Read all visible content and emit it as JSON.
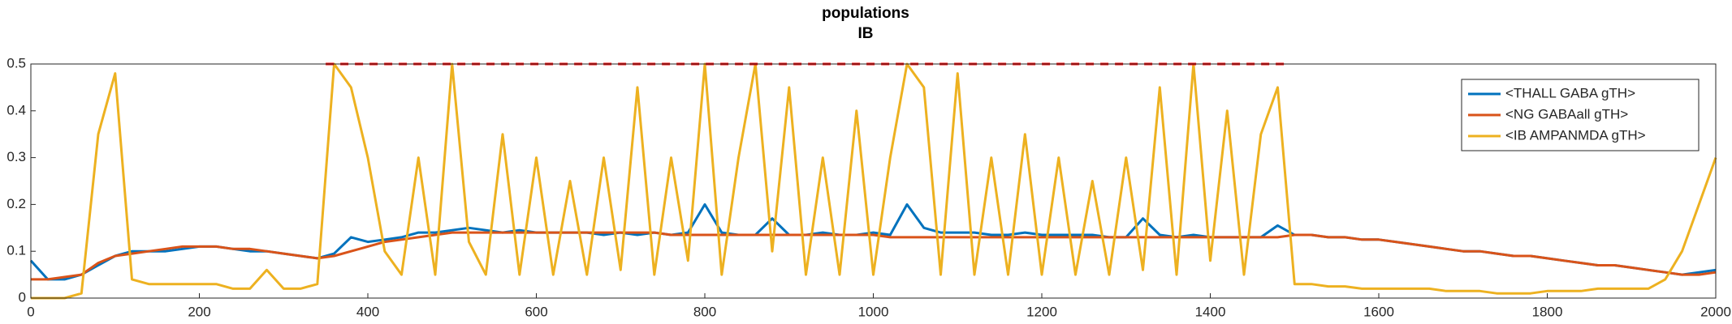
{
  "chart_data": {
    "type": "line",
    "title": "populations",
    "subtitle": "IB",
    "x": [
      0,
      20,
      40,
      60,
      80,
      100,
      120,
      140,
      160,
      180,
      200,
      220,
      240,
      260,
      280,
      300,
      320,
      340,
      360,
      380,
      400,
      420,
      440,
      460,
      480,
      500,
      520,
      540,
      560,
      580,
      600,
      620,
      640,
      660,
      680,
      700,
      720,
      740,
      760,
      780,
      800,
      820,
      840,
      860,
      880,
      900,
      920,
      940,
      960,
      980,
      1000,
      1020,
      1040,
      1060,
      1080,
      1100,
      1120,
      1140,
      1160,
      1180,
      1200,
      1220,
      1240,
      1260,
      1280,
      1300,
      1320,
      1340,
      1360,
      1380,
      1400,
      1420,
      1440,
      1460,
      1480,
      1500,
      1520,
      1540,
      1560,
      1580,
      1600,
      1620,
      1640,
      1660,
      1680,
      1700,
      1720,
      1740,
      1760,
      1780,
      1800,
      1820,
      1840,
      1860,
      1880,
      1900,
      1920,
      1940,
      1960,
      1980,
      2000
    ],
    "series": [
      {
        "name": "<THALL GABA gTH>",
        "color": "#0072bd",
        "values": [
          0.08,
          0.04,
          0.04,
          0.05,
          0.07,
          0.09,
          0.1,
          0.1,
          0.1,
          0.105,
          0.11,
          0.11,
          0.105,
          0.1,
          0.1,
          0.095,
          0.09,
          0.085,
          0.095,
          0.13,
          0.12,
          0.125,
          0.13,
          0.14,
          0.14,
          0.145,
          0.15,
          0.145,
          0.14,
          0.145,
          0.14,
          0.14,
          0.14,
          0.14,
          0.135,
          0.14,
          0.135,
          0.14,
          0.135,
          0.14,
          0.2,
          0.14,
          0.135,
          0.135,
          0.17,
          0.135,
          0.135,
          0.14,
          0.135,
          0.135,
          0.14,
          0.135,
          0.2,
          0.15,
          0.14,
          0.14,
          0.14,
          0.135,
          0.135,
          0.14,
          0.135,
          0.135,
          0.135,
          0.135,
          0.13,
          0.13,
          0.17,
          0.135,
          0.13,
          0.135,
          0.13,
          0.13,
          0.13,
          0.13,
          0.155,
          0.135,
          0.135,
          0.13,
          0.13,
          0.125,
          0.125,
          0.12,
          0.115,
          0.11,
          0.105,
          0.1,
          0.1,
          0.095,
          0.09,
          0.09,
          0.085,
          0.08,
          0.075,
          0.07,
          0.07,
          0.065,
          0.06,
          0.055,
          0.05,
          0.055,
          0.06
        ]
      },
      {
        "name": "<NG GABAall gTH>",
        "color": "#d95319",
        "values": [
          0.04,
          0.04,
          0.045,
          0.05,
          0.075,
          0.09,
          0.095,
          0.1,
          0.105,
          0.11,
          0.11,
          0.11,
          0.105,
          0.105,
          0.1,
          0.095,
          0.09,
          0.085,
          0.09,
          0.1,
          0.11,
          0.12,
          0.125,
          0.13,
          0.135,
          0.14,
          0.14,
          0.14,
          0.14,
          0.14,
          0.14,
          0.14,
          0.14,
          0.14,
          0.14,
          0.14,
          0.14,
          0.14,
          0.135,
          0.135,
          0.135,
          0.135,
          0.135,
          0.135,
          0.135,
          0.135,
          0.135,
          0.135,
          0.135,
          0.135,
          0.135,
          0.13,
          0.13,
          0.13,
          0.13,
          0.13,
          0.13,
          0.13,
          0.13,
          0.13,
          0.13,
          0.13,
          0.13,
          0.13,
          0.13,
          0.13,
          0.13,
          0.13,
          0.13,
          0.13,
          0.13,
          0.13,
          0.13,
          0.13,
          0.13,
          0.135,
          0.135,
          0.13,
          0.13,
          0.125,
          0.125,
          0.12,
          0.115,
          0.11,
          0.105,
          0.1,
          0.1,
          0.095,
          0.09,
          0.09,
          0.085,
          0.08,
          0.075,
          0.07,
          0.07,
          0.065,
          0.06,
          0.055,
          0.05,
          0.05,
          0.055
        ]
      },
      {
        "name": "<IB AMPANMDA gTH>",
        "color": "#edb120",
        "values": [
          0,
          0,
          0,
          0.01,
          0.35,
          0.48,
          0.04,
          0.03,
          0.03,
          0.03,
          0.03,
          0.03,
          0.02,
          0.02,
          0.06,
          0.02,
          0.02,
          0.03,
          0.5,
          0.45,
          0.3,
          0.1,
          0.05,
          0.3,
          0.05,
          0.5,
          0.12,
          0.05,
          0.35,
          0.05,
          0.3,
          0.05,
          0.25,
          0.05,
          0.3,
          0.06,
          0.45,
          0.05,
          0.3,
          0.08,
          0.5,
          0.05,
          0.3,
          0.5,
          0.1,
          0.45,
          0.05,
          0.3,
          0.05,
          0.4,
          0.05,
          0.3,
          0.5,
          0.45,
          0.05,
          0.48,
          0.05,
          0.3,
          0.05,
          0.35,
          0.05,
          0.3,
          0.05,
          0.25,
          0.05,
          0.3,
          0.06,
          0.45,
          0.05,
          0.5,
          0.08,
          0.4,
          0.05,
          0.35,
          0.45,
          0.03,
          0.03,
          0.025,
          0.025,
          0.02,
          0.02,
          0.02,
          0.02,
          0.02,
          0.015,
          0.015,
          0.015,
          0.01,
          0.01,
          0.01,
          0.015,
          0.015,
          0.015,
          0.02,
          0.02,
          0.02,
          0.02,
          0.04,
          0.1,
          0.2,
          0.3
        ]
      }
    ],
    "reference_line": {
      "color": "#ff0000",
      "x": [
        350,
        1490
      ],
      "values": [
        0.5,
        0.5
      ]
    },
    "xlim": [
      0,
      2000
    ],
    "xticks": [
      0,
      200,
      400,
      600,
      800,
      1000,
      1200,
      1400,
      1600,
      1800,
      2000
    ],
    "ylim": [
      0,
      0.5
    ],
    "yticks": [
      0,
      0.1,
      0.2,
      0.3,
      0.4,
      0.5
    ],
    "legend": "upper-right"
  }
}
